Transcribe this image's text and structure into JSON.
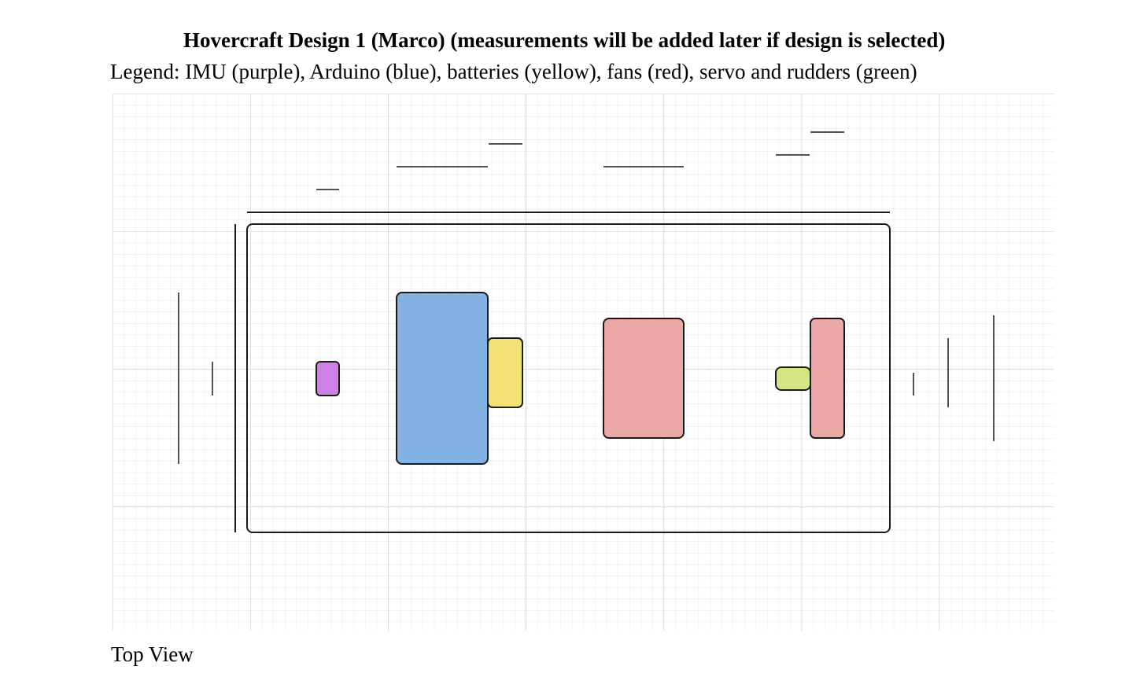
{
  "diagram": {
    "title": "Hovercraft Design 1 (Marco) (measurements will be added later if design is selected)",
    "legend": "Legend: IMU (purple), Arduino (blue), batteries (yellow), fans (red), servo and rudders (green)",
    "caption": "Top View",
    "components": [
      {
        "name": "imu",
        "color": "#cf80e6"
      },
      {
        "name": "arduino",
        "color": "#82b1e3"
      },
      {
        "name": "batteries",
        "color": "#f2e173"
      },
      {
        "name": "fan-1",
        "color": "#eba6a6"
      },
      {
        "name": "fan-2",
        "color": "#eba6a6"
      },
      {
        "name": "servo-rudder",
        "color": "#d4e683"
      }
    ],
    "colors": {
      "grid_minor": "#e6e6e6",
      "grid_major": "#cfcfcf",
      "outline": "#1a1a1a"
    }
  }
}
